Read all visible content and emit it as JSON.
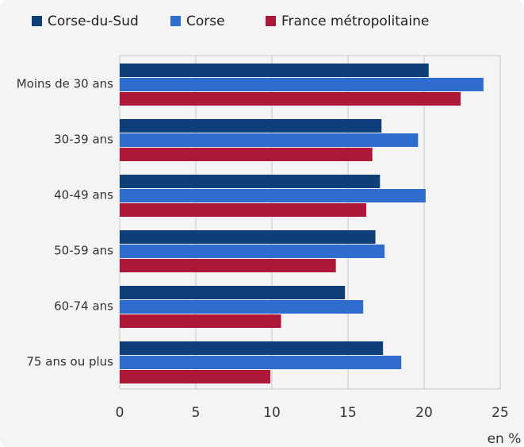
{
  "chart_data": {
    "type": "bar",
    "orientation": "horizontal",
    "categories": [
      "Moins de 30 ans",
      "30-39 ans",
      "40-49 ans",
      "50-59 ans",
      "60-74 ans",
      "75 ans ou plus"
    ],
    "series": [
      {
        "name": "Corse-du-Sud",
        "color": "#0f3f78",
        "values": [
          20.3,
          17.2,
          17.1,
          16.8,
          14.8,
          17.3
        ]
      },
      {
        "name": "Corse",
        "color": "#2e6dcd",
        "values": [
          23.9,
          19.6,
          20.1,
          17.4,
          16.0,
          18.5
        ]
      },
      {
        "name": "France métropolitaine",
        "color": "#ad1738",
        "values": [
          22.4,
          16.6,
          16.2,
          14.2,
          10.6,
          9.9
        ]
      }
    ],
    "xlim": [
      0,
      25
    ],
    "xticks": [
      0,
      5,
      10,
      15,
      20,
      25
    ],
    "x_unit": "en %",
    "grid": true
  }
}
